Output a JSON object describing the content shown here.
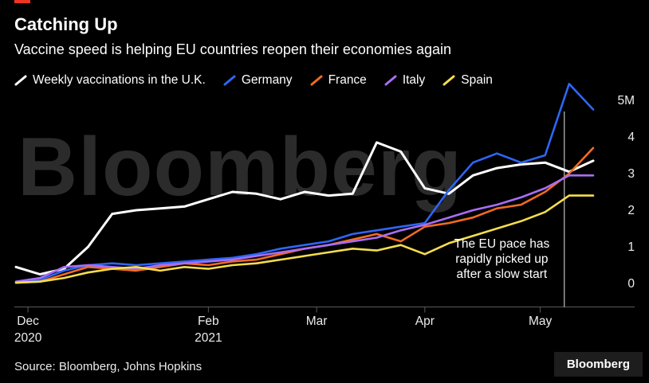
{
  "header": {
    "title": "Catching Up",
    "subtitle": "Vaccine speed is helping EU countries reopen their economies again"
  },
  "watermark": "Bloomberg",
  "footer": {
    "source": "Source: Bloomberg, Johns Hopkins",
    "logo": "Bloomberg"
  },
  "colors": {
    "background": "#000000",
    "accent_red": "#ee3524",
    "axis": "#5a5a5a",
    "tick_text": "#ececec",
    "annotation_text": "#ffffff",
    "marker_line": "#e8e8e8",
    "watermark": "#2b2b2b"
  },
  "chart_data": {
    "type": "line",
    "title": "Catching Up",
    "subtitle": "Vaccine speed is helping EU countries reopen their economies again",
    "x_description": "Weekly index 0-24 spanning Dec 2020 to mid-May 2021",
    "ylim": [
      0,
      5.6
    ],
    "grid": false,
    "legend_position": "top",
    "y_axis_side": "right",
    "y_ticks": [
      {
        "value": 0,
        "label": "0"
      },
      {
        "value": 1,
        "label": "1"
      },
      {
        "value": 2,
        "label": "2"
      },
      {
        "value": 3,
        "label": "3"
      },
      {
        "value": 4,
        "label": "4"
      },
      {
        "value": 5,
        "label": "5M"
      }
    ],
    "x_ticks": [
      {
        "i": 0.5,
        "label": "Dec",
        "sublabel": "2020"
      },
      {
        "i": 8,
        "label": "Feb",
        "sublabel": "2021"
      },
      {
        "i": 12.5,
        "label": "Mar",
        "sublabel": ""
      },
      {
        "i": 17,
        "label": "Apr",
        "sublabel": ""
      },
      {
        "i": 21.8,
        "label": "May",
        "sublabel": ""
      }
    ],
    "series": [
      {
        "name": "Weekly vaccinations in the U.K.",
        "color": "#ffffff",
        "width": 3,
        "values": [
          0.45,
          0.25,
          0.4,
          1.0,
          1.9,
          2.0,
          2.05,
          2.1,
          2.3,
          2.5,
          2.45,
          2.3,
          2.5,
          2.4,
          2.45,
          3.85,
          3.6,
          2.6,
          2.45,
          2.95,
          3.15,
          3.25,
          3.3,
          3.05,
          3.35
        ]
      },
      {
        "name": "Germany",
        "color": "#2e66f6",
        "width": 2.6,
        "values": [
          0.02,
          0.1,
          0.35,
          0.5,
          0.55,
          0.5,
          0.55,
          0.6,
          0.65,
          0.7,
          0.8,
          0.95,
          1.05,
          1.15,
          1.35,
          1.45,
          1.55,
          1.65,
          2.55,
          3.3,
          3.55,
          3.3,
          3.5,
          5.45,
          4.75
        ]
      },
      {
        "name": "France",
        "color": "#f26b21",
        "width": 2.6,
        "values": [
          0.02,
          0.05,
          0.25,
          0.45,
          0.4,
          0.35,
          0.45,
          0.55,
          0.5,
          0.6,
          0.65,
          0.8,
          0.95,
          1.05,
          1.2,
          1.35,
          1.15,
          1.55,
          1.65,
          1.8,
          2.05,
          2.15,
          2.5,
          3.0,
          3.7
        ]
      },
      {
        "name": "Italy",
        "color": "#a86ef5",
        "width": 2.6,
        "values": [
          0.05,
          0.15,
          0.45,
          0.5,
          0.45,
          0.4,
          0.5,
          0.55,
          0.6,
          0.65,
          0.75,
          0.85,
          0.95,
          1.05,
          1.15,
          1.25,
          1.45,
          1.6,
          1.8,
          2.0,
          2.15,
          2.35,
          2.6,
          2.95,
          2.95
        ]
      },
      {
        "name": "Spain",
        "color": "#f5dd4e",
        "width": 2.6,
        "values": [
          0.02,
          0.05,
          0.15,
          0.3,
          0.4,
          0.45,
          0.35,
          0.45,
          0.4,
          0.5,
          0.55,
          0.65,
          0.75,
          0.85,
          0.95,
          0.9,
          1.05,
          0.8,
          1.1,
          1.3,
          1.5,
          1.7,
          1.95,
          2.4,
          2.4
        ]
      }
    ],
    "annotation": {
      "lines": [
        "The EU pace has",
        "rapidly picked up",
        "after a slow start"
      ],
      "x_i": 20.2,
      "marker_line_i": 22.8
    }
  }
}
